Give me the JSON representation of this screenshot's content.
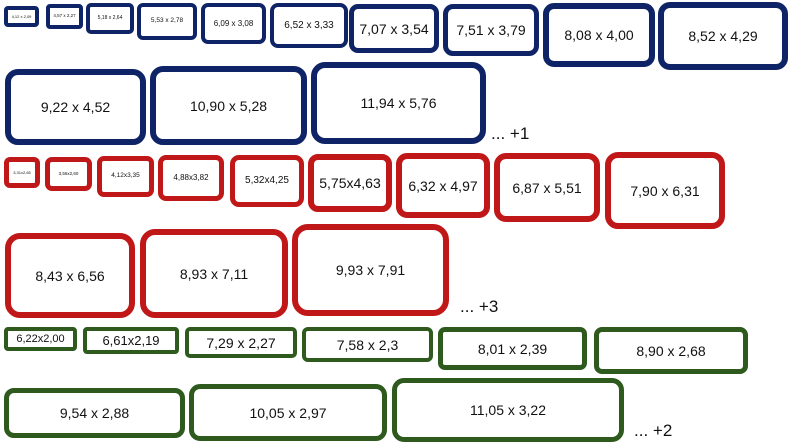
{
  "colors": {
    "blue": "#0f2466",
    "red": "#c01818",
    "green": "#2f5a1e"
  },
  "groups": [
    {
      "name": "blue",
      "labels": [
        "4,12 x 2,09",
        "4,57 x 2,27",
        "5,18 x 2,64",
        "5,53 x 2,78",
        "6,09 x 3,08",
        "6,52 x 3,33",
        "7,07 x 3,54",
        "7,51 x 3,79",
        "8,08 x 4,00",
        "8,52 x 4,29",
        "9,22 x 4,52",
        "10,90 x 5,28",
        "11,94 x 5,76"
      ],
      "more": "... +1"
    },
    {
      "name": "red",
      "labels": [
        "3,31x2,65",
        "3,56x2,60",
        "4,12x3,35",
        "4,88x3,82",
        "5,32x4,25",
        "5,75x4,63",
        "6,32 x 4,97",
        "6,87 x 5,51",
        "7,90 x 6,31",
        "8,43 x 6,56",
        "8,93 x 7,11",
        "9,93 x 7,91"
      ],
      "more": "... +3"
    },
    {
      "name": "green",
      "labels": [
        "6,22x2,00",
        "6,61x2,19",
        "7,29 x 2,27",
        "7,58 x 2,3",
        "8,01 x 2,39",
        "8,90 x 2,68",
        "9,54 x 2,88",
        "10,05 x 2,97",
        "11,05 x 3,22"
      ],
      "more": "... +2"
    }
  ]
}
